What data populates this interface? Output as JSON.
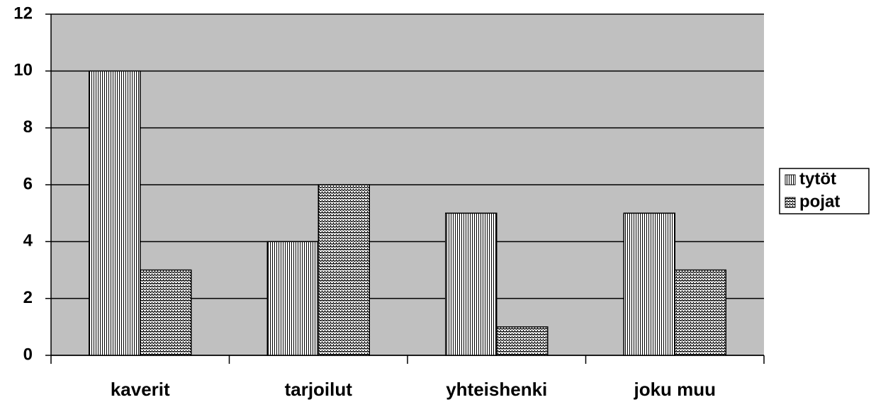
{
  "chart_data": {
    "type": "bar",
    "categories": [
      "kaverit",
      "tarjoilut",
      "yhteishenki",
      "joku muu"
    ],
    "series": [
      {
        "name": "tytöt",
        "color": "#000000",
        "pattern": "vertical-lines",
        "values": [
          10,
          4,
          5,
          5
        ]
      },
      {
        "name": "pojat",
        "color": "#000000",
        "pattern": "bricks",
        "values": [
          3,
          6,
          1,
          3
        ]
      }
    ],
    "ylim": [
      0,
      12
    ],
    "yticks": [
      0,
      2,
      4,
      6,
      8,
      10,
      12
    ],
    "grid": true,
    "plot_background": "#c0c0c0",
    "legend": "right"
  }
}
